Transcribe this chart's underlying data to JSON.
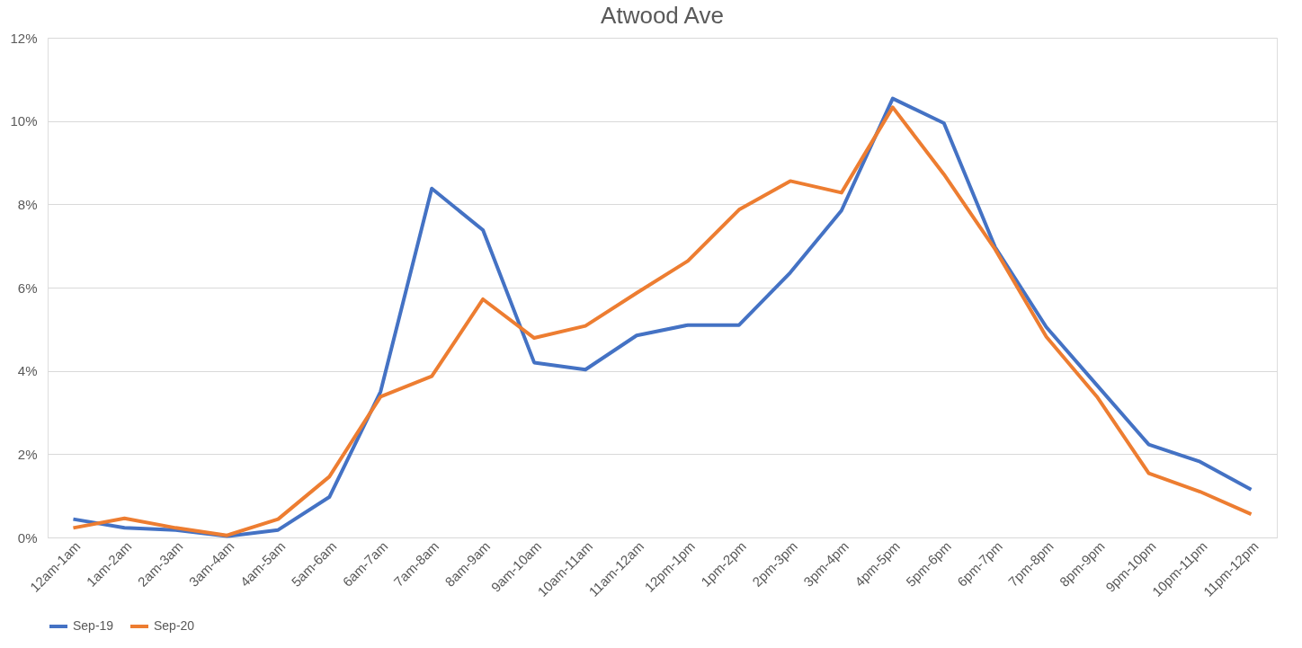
{
  "chart_data": {
    "type": "line",
    "title": "Atwood Ave",
    "categories": [
      "12am-1am",
      "1am-2am",
      "2am-3am",
      "3am-4am",
      "4am-5am",
      "5am-6am",
      "6am-7am",
      "7am-8am",
      "8am-9am",
      "9am-10am",
      "10am-11am",
      "11am-12am",
      "12pm-1pm",
      "1pm-2pm",
      "2pm-3pm",
      "3pm-4pm",
      "4pm-5pm",
      "5pm-6pm",
      "6pm-7pm",
      "7pm-8pm",
      "8pm-9pm",
      "9pm-10pm",
      "10pm-11pm",
      "11pm-12pm"
    ],
    "series": [
      {
        "name": "Sep-19",
        "color": "#4472c4",
        "values": [
          0.44,
          0.23,
          0.18,
          0.03,
          0.18,
          0.97,
          3.5,
          8.38,
          7.38,
          4.2,
          4.03,
          4.85,
          5.1,
          5.1,
          6.36,
          7.85,
          10.54,
          9.95,
          6.97,
          5.05,
          3.64,
          2.23,
          1.82,
          1.15
        ]
      },
      {
        "name": "Sep-20",
        "color": "#ed7d31",
        "values": [
          0.23,
          0.46,
          0.23,
          0.05,
          0.44,
          1.46,
          3.38,
          3.87,
          5.72,
          4.79,
          5.08,
          5.87,
          6.64,
          7.87,
          8.56,
          8.28,
          10.33,
          8.72,
          6.92,
          4.82,
          3.36,
          1.54,
          1.1,
          0.56
        ]
      }
    ],
    "ylim": [
      0,
      12
    ],
    "yticks": [
      {
        "value": 0,
        "label": "0%"
      },
      {
        "value": 2,
        "label": "2%"
      },
      {
        "value": 4,
        "label": "4%"
      },
      {
        "value": 6,
        "label": "6%"
      },
      {
        "value": 8,
        "label": "8%"
      },
      {
        "value": 10,
        "label": "10%"
      },
      {
        "value": 12,
        "label": "12%"
      }
    ],
    "grid": "y",
    "legend": "bottom",
    "marker": "none",
    "line_style": "solid"
  }
}
